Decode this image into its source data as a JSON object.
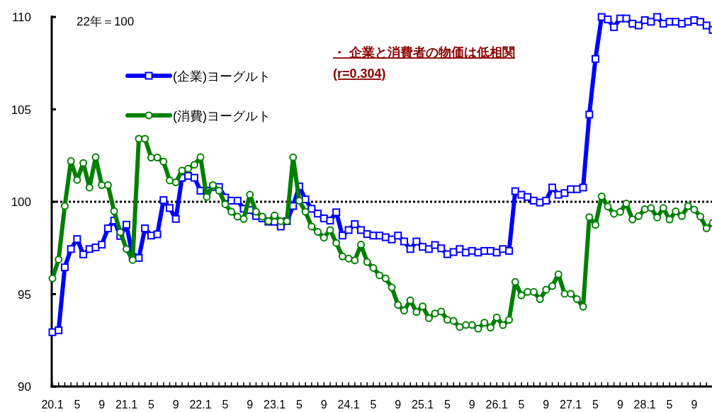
{
  "chart_data": {
    "type": "line",
    "annotations": [
      "22年＝100",
      "・ 企業と消費者の物価は低相関",
      "(r=0.304)"
    ],
    "categories": [
      "20.1",
      null,
      null,
      null,
      "5",
      null,
      null,
      null,
      "9",
      null,
      null,
      null,
      "21.1",
      null,
      null,
      null,
      "5",
      null,
      null,
      null,
      "9",
      null,
      null,
      null,
      "22.1",
      null,
      null,
      null,
      "5",
      null,
      null,
      null,
      "9",
      null,
      null,
      null,
      "23.1",
      null,
      null,
      null,
      "5",
      null,
      null,
      null,
      "9",
      null,
      null,
      null,
      "24.1",
      null,
      null,
      null,
      "5",
      null,
      null,
      null,
      "9",
      null,
      null,
      null,
      "25.1",
      null,
      null,
      null,
      "5",
      null,
      null,
      null,
      "9",
      null,
      null,
      null,
      "26.1",
      null,
      null,
      null,
      "5",
      null,
      null,
      null,
      "9",
      null,
      null,
      null,
      "27.1",
      null,
      null,
      null,
      "5",
      null,
      null,
      null,
      "9",
      null,
      null,
      null,
      "28.1",
      null,
      null,
      null,
      "5",
      null,
      null,
      null,
      "9",
      null,
      null,
      null
    ],
    "series": [
      {
        "name": "(企業)ヨーグルト",
        "color": "#0000ff",
        "marker": "square",
        "values": [
          92.94,
          93.04,
          96.45,
          97.44,
          97.98,
          97.15,
          97.44,
          97.53,
          97.68,
          98.56,
          98.98,
          98.15,
          98.76,
          97.02,
          96.96,
          98.56,
          98.17,
          98.24,
          100.09,
          99.66,
          99.07,
          101.3,
          101.4,
          101.3,
          100.6,
          100.6,
          100.8,
          100.8,
          100.23,
          100.06,
          100.06,
          99.62,
          99.55,
          99.23,
          99.1,
          98.92,
          98.92,
          98.66,
          98.95,
          99.77,
          100.83,
          100.13,
          99.62,
          99.36,
          99.1,
          98.98,
          99.43,
          98.17,
          98.47,
          98.79,
          98.47,
          98.25,
          98.17,
          98.17,
          98.08,
          97.96,
          98.17,
          97.85,
          97.44,
          97.85,
          97.56,
          97.44,
          97.66,
          97.48,
          97.16,
          97.28,
          97.44,
          97.25,
          97.34,
          97.25,
          97.34,
          97.34,
          97.25,
          97.44,
          97.34,
          100.57,
          100.38,
          100.26,
          100.06,
          99.96,
          100.06,
          100.77,
          100.38,
          100.47,
          100.68,
          100.68,
          100.77,
          104.72,
          107.73,
          110,
          109.87,
          109.45,
          109.92,
          109.92,
          109.64,
          109.54,
          109.83,
          109.74,
          110,
          109.64,
          109.74,
          109.74,
          109.64,
          109.74,
          109.83,
          109.74,
          109.54,
          109.3
        ]
      },
      {
        "name": "(消費)ヨーグルト",
        "color": "#008000",
        "marker": "circle",
        "values": [
          95.85,
          96.87,
          99.77,
          102.2,
          101.18,
          102.1,
          100.77,
          102.41,
          100.9,
          100.9,
          99.49,
          98.35,
          97.44,
          96.85,
          103.41,
          103.41,
          102.39,
          102.39,
          102.17,
          101.15,
          101.05,
          101.69,
          101.79,
          102.0,
          102.41,
          100.26,
          100.9,
          100.6,
          99.87,
          99.46,
          99.2,
          99.07,
          100.38,
          99.46,
          99.2,
          98.95,
          99.26,
          98.95,
          98.95,
          102.4,
          100.06,
          99.46,
          98.66,
          98.37,
          98.06,
          98.47,
          97.77,
          97.04,
          96.93,
          96.83,
          97.68,
          96.74,
          96.42,
          96.02,
          95.85,
          95.36,
          94.42,
          94.11,
          94.66,
          94.03,
          94.34,
          93.7,
          93.96,
          94.06,
          93.61,
          93.55,
          93.22,
          93.33,
          93.33,
          93.13,
          93.46,
          93.19,
          93.74,
          93.32,
          93.61,
          95.66,
          94.93,
          95.12,
          95.12,
          94.73,
          95.24,
          95.44,
          96.07,
          95.02,
          95.02,
          94.73,
          94.32,
          99.17,
          98.75,
          100.29,
          99.74,
          99.35,
          99.45,
          99.9,
          99.04,
          99.22,
          99.6,
          99.66,
          99.15,
          99.66,
          99.04,
          99.48,
          99.22,
          99.77,
          99.58,
          99.2,
          98.56,
          98.85
        ]
      }
    ],
    "ylim": [
      90,
      110
    ],
    "yticks": [
      90,
      95,
      100,
      105,
      110
    ],
    "ref_lines": [
      {
        "axis": "y",
        "value": 100,
        "color": "#000000",
        "line_style": "dotted"
      }
    ],
    "legend": "top left",
    "grid": false
  }
}
